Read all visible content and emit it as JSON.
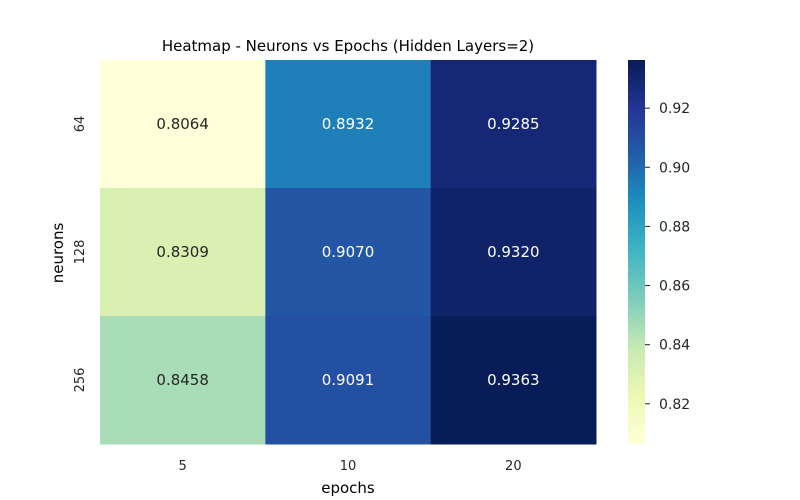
{
  "chart_data": {
    "type": "heatmap",
    "title": "Heatmap - Neurons vs Epochs (Hidden Layers=2)",
    "xlabel": "epochs",
    "ylabel": "neurons",
    "x_categories": [
      "5",
      "10",
      "20"
    ],
    "y_categories": [
      "64",
      "128",
      "256"
    ],
    "values": [
      [
        0.8064,
        0.8932,
        0.9285
      ],
      [
        0.8309,
        0.907,
        0.932
      ],
      [
        0.8458,
        0.9091,
        0.9363
      ]
    ],
    "cell_labels": [
      [
        "0.8064",
        "0.8932",
        "0.9285"
      ],
      [
        "0.8309",
        "0.9070",
        "0.9320"
      ],
      [
        "0.8458",
        "0.9091",
        "0.9363"
      ]
    ],
    "colormap": "YlGnBu",
    "colorbar": {
      "range": [
        0.8064,
        0.9363
      ],
      "ticks": [
        0.82,
        0.84,
        0.86,
        0.88,
        0.9,
        0.92
      ],
      "tick_labels": [
        "0.82",
        "0.84",
        "0.86",
        "0.88",
        "0.90",
        "0.92"
      ]
    },
    "grid": false
  },
  "colors": {
    "text": "#262626",
    "label_light": "#ffffff",
    "label_dark": "#262626",
    "ylgnbu": [
      "#ffffd9",
      "#edf8b1",
      "#c7e9b4",
      "#7fcdbb",
      "#41b6c4",
      "#1d91c0",
      "#225ea8",
      "#253494",
      "#081d58"
    ]
  }
}
